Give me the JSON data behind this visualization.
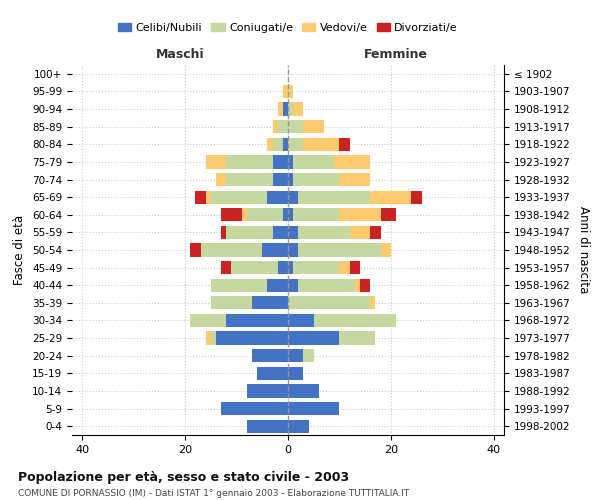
{
  "age_groups": [
    "0-4",
    "5-9",
    "10-14",
    "15-19",
    "20-24",
    "25-29",
    "30-34",
    "35-39",
    "40-44",
    "45-49",
    "50-54",
    "55-59",
    "60-64",
    "65-69",
    "70-74",
    "75-79",
    "80-84",
    "85-89",
    "90-94",
    "95-99",
    "100+"
  ],
  "birth_years": [
    "1998-2002",
    "1993-1997",
    "1988-1992",
    "1983-1987",
    "1978-1982",
    "1973-1977",
    "1968-1972",
    "1963-1967",
    "1958-1962",
    "1953-1957",
    "1948-1952",
    "1943-1947",
    "1938-1942",
    "1933-1937",
    "1928-1932",
    "1923-1927",
    "1918-1922",
    "1913-1917",
    "1908-1912",
    "1903-1907",
    "≤ 1902"
  ],
  "colors": {
    "celibe": "#4472c4",
    "coniugato": "#c5d8a0",
    "vedovo": "#ffc96e",
    "divorziato": "#cc2222"
  },
  "males": {
    "celibe": [
      8,
      13,
      8,
      6,
      7,
      14,
      12,
      7,
      4,
      2,
      5,
      3,
      1,
      4,
      3,
      3,
      1,
      0,
      1,
      0,
      0
    ],
    "coniugato": [
      0,
      0,
      0,
      0,
      0,
      1,
      7,
      8,
      11,
      9,
      12,
      9,
      7,
      11,
      9,
      9,
      2,
      2,
      0,
      0,
      0
    ],
    "vedovo": [
      0,
      0,
      0,
      0,
      0,
      1,
      0,
      0,
      0,
      0,
      0,
      0,
      1,
      1,
      2,
      4,
      1,
      1,
      1,
      1,
      0
    ],
    "divorziato": [
      0,
      0,
      0,
      0,
      0,
      0,
      0,
      0,
      0,
      2,
      2,
      1,
      4,
      2,
      0,
      0,
      0,
      0,
      0,
      0,
      0
    ]
  },
  "females": {
    "nubile": [
      4,
      10,
      6,
      3,
      3,
      10,
      5,
      0,
      2,
      1,
      2,
      2,
      1,
      2,
      1,
      1,
      0,
      0,
      0,
      0,
      0
    ],
    "coniugata": [
      0,
      0,
      0,
      0,
      2,
      7,
      16,
      16,
      11,
      9,
      16,
      10,
      9,
      14,
      9,
      8,
      3,
      3,
      1,
      0,
      0
    ],
    "vedova": [
      0,
      0,
      0,
      0,
      0,
      0,
      0,
      1,
      1,
      2,
      2,
      4,
      8,
      8,
      6,
      7,
      7,
      4,
      2,
      1,
      0
    ],
    "divorziata": [
      0,
      0,
      0,
      0,
      0,
      0,
      0,
      0,
      2,
      2,
      0,
      2,
      3,
      2,
      0,
      0,
      2,
      0,
      0,
      0,
      0
    ]
  },
  "xlim": [
    -42,
    42
  ],
  "xticks": [
    -40,
    -20,
    0,
    20,
    40
  ],
  "xticklabels": [
    "40",
    "20",
    "0",
    "20",
    "40"
  ],
  "title": "Popolazione per età, sesso e stato civile - 2003",
  "subtitle": "COMUNE DI PORNASSIO (IM) - Dati ISTAT 1° gennaio 2003 - Elaborazione TUTTITALIA.IT",
  "ylabel_left": "Fasce di età",
  "ylabel_right": "Anni di nascita",
  "legend_labels": [
    "Celibi/Nubili",
    "Coniugati/e",
    "Vedovi/e",
    "Divorziati/e"
  ],
  "background_color": "#ffffff",
  "grid_color": "#cccccc"
}
